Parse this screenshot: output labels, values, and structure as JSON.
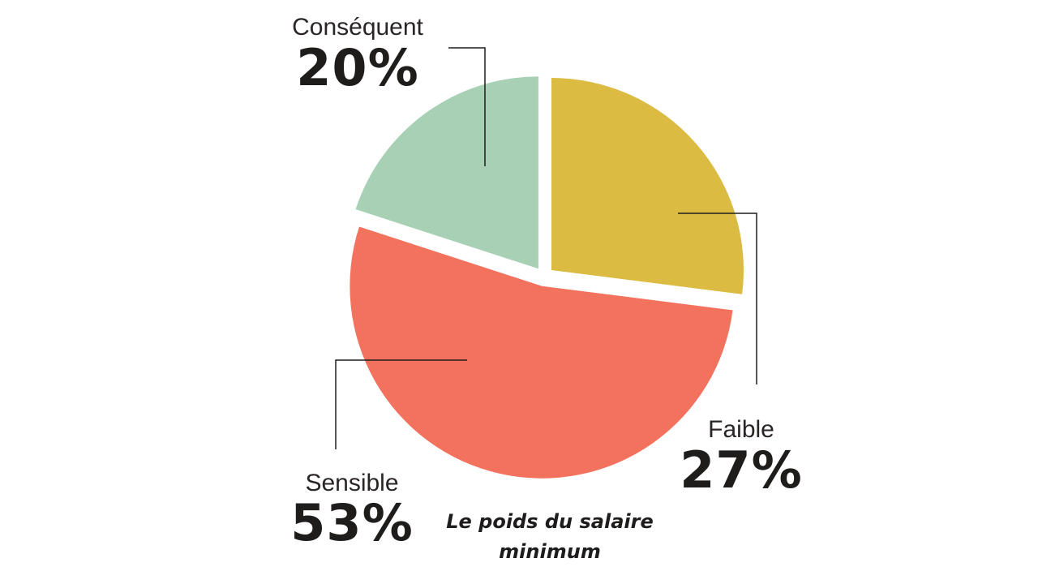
{
  "chart_data": {
    "type": "pie",
    "title": "Le poids du salaire minimum",
    "title_lines": [
      "Le poids du salaire",
      "minimum"
    ],
    "slices": [
      {
        "label": "Faible",
        "value": 27,
        "display": "27%",
        "color": "#dcbb42"
      },
      {
        "label": "Sensible",
        "value": 53,
        "display": "53%",
        "color": "#f2725e"
      },
      {
        "label": "Conséquent",
        "value": 20,
        "display": "20%",
        "color": "#a7d0b4"
      }
    ],
    "start_angle_deg": 0,
    "direction": "clockwise",
    "exploded": true
  }
}
